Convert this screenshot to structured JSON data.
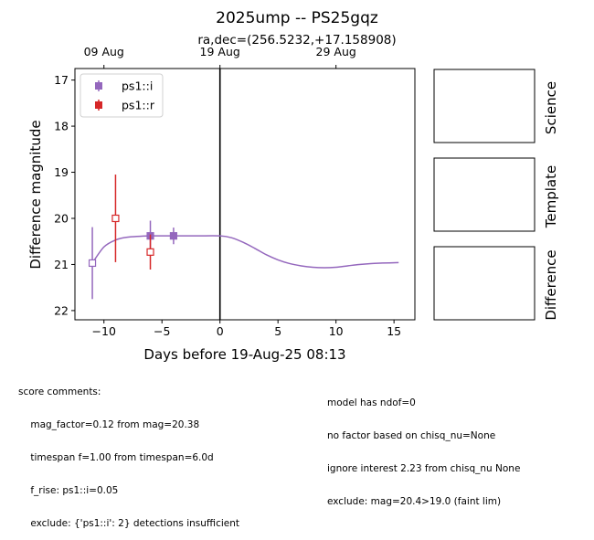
{
  "chart_data": {
    "type": "scatter",
    "title": "2025ump -- PS25gqz",
    "subtitle": "ra,dec=(256.5232,+17.158908)",
    "xlabel": "Days before 19-Aug-25 08:13",
    "ylabel": "Difference magnitude",
    "xlim": [
      -12.5,
      16.8
    ],
    "ylim": [
      22.2,
      16.75
    ],
    "y_inverted": true,
    "x_ticks": [
      -10,
      -5,
      0,
      5,
      10,
      15
    ],
    "x_tick_labels": [
      "−10",
      "−5",
      "0",
      "5",
      "10",
      "15"
    ],
    "y_ticks": [
      17,
      18,
      19,
      20,
      21,
      22
    ],
    "y_tick_labels": [
      "17",
      "18",
      "19",
      "20",
      "21",
      "22"
    ],
    "top_axis": {
      "ticks": [
        -10,
        0,
        10
      ],
      "labels": [
        "09 Aug",
        "19 Aug",
        "29 Aug"
      ]
    },
    "vertical_line_x": 0,
    "legend_placement": "top-left",
    "series": [
      {
        "name": "ps1::i",
        "color": "#9467bd",
        "points": [
          {
            "x": -11.0,
            "y": 20.97,
            "err": 0.78,
            "filled": false
          },
          {
            "x": -6.0,
            "y": 20.38,
            "err": 0.33,
            "filled": true
          },
          {
            "x": -4.0,
            "y": 20.38,
            "err": 0.18,
            "filled": true
          }
        ]
      },
      {
        "name": "ps1::r",
        "color": "#d62728",
        "points": [
          {
            "x": -9.0,
            "y": 20.0,
            "err": 0.95,
            "filled": false
          },
          {
            "x": -6.0,
            "y": 20.73,
            "err": 0.38,
            "filled": false
          }
        ]
      }
    ],
    "model_curve": {
      "color": "#9467bd",
      "points": [
        [
          -11.0,
          20.97
        ],
        [
          -10.0,
          20.62
        ],
        [
          -9.0,
          20.47
        ],
        [
          -8.0,
          20.41
        ],
        [
          -6.0,
          20.38
        ],
        [
          -4.0,
          20.38
        ],
        [
          -2.0,
          20.38
        ],
        [
          0.0,
          20.38
        ],
        [
          1.0,
          20.42
        ],
        [
          2.0,
          20.52
        ],
        [
          3.0,
          20.65
        ],
        [
          4.0,
          20.79
        ],
        [
          5.0,
          20.9
        ],
        [
          6.0,
          20.98
        ],
        [
          7.0,
          21.03
        ],
        [
          8.0,
          21.06
        ],
        [
          9.0,
          21.07
        ],
        [
          10.0,
          21.06
        ],
        [
          11.0,
          21.03
        ],
        [
          12.0,
          21.0
        ],
        [
          13.0,
          20.98
        ],
        [
          14.0,
          20.97
        ],
        [
          15.4,
          20.96
        ]
      ]
    }
  },
  "side_panels": [
    {
      "label": "Science"
    },
    {
      "label": "Template"
    },
    {
      "label": "Difference"
    }
  ],
  "comments_left": [
    "score comments:",
    "    mag_factor=0.12 from mag=20.38",
    "    timespan f=1.00 from timespan=6.0d",
    "    f_rise: ps1::i=0.05",
    "    exclude: {'ps1::i': 2} detections insufficient"
  ],
  "comments_right": [
    "model has ndof=0",
    "no factor based on chisq_nu=None",
    "ignore interest 2.23 from chisq_nu None",
    "exclude: mag=20.4>19.0 (faint lim)"
  ]
}
